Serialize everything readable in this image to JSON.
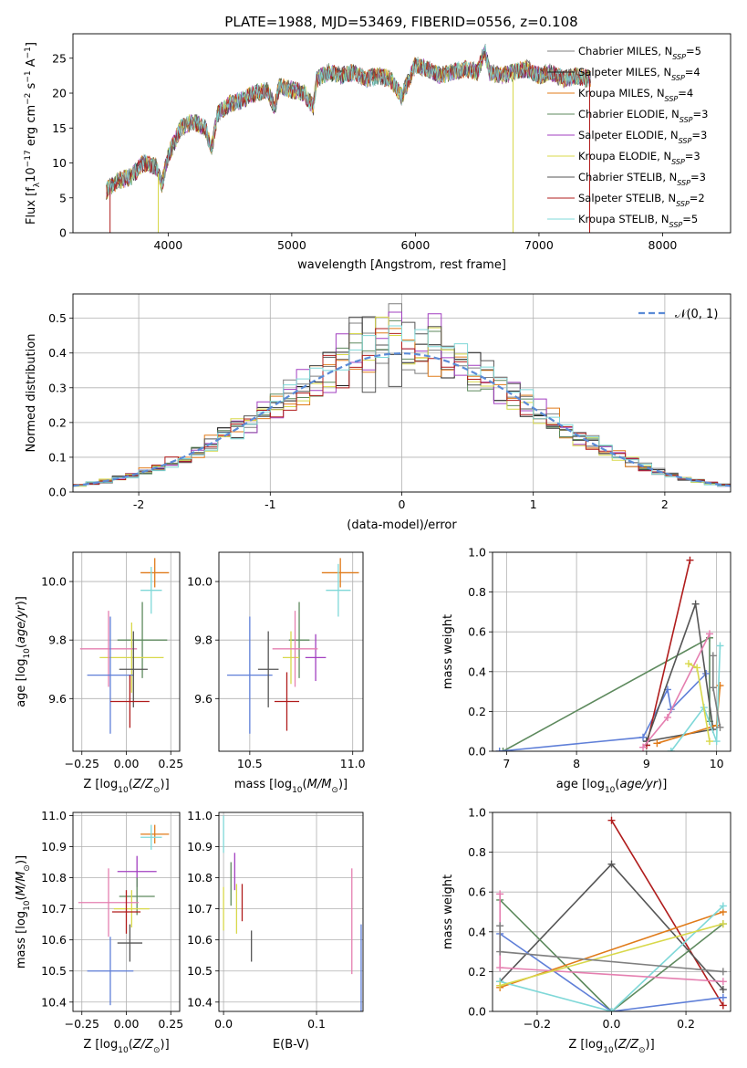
{
  "title": "PLATE=1988, MJD=53469, FIBERID=0556, z=0.108",
  "colors": {
    "Chabrier MILES": "#7f7f7f",
    "Salpeter MILES": "#1f1f1f",
    "Kroupa MILES": "#e07b1a",
    "Chabrier ELODIE": "#5e8a5e",
    "Salpeter ELODIE": "#a23fc0",
    "Kroupa ELODIE": "#d8d84a",
    "Chabrier STELIB": "#555555",
    "Salpeter STELIB": "#b01c1c",
    "Kroupa STELIB": "#7fd8d8",
    "blue": "#5f7fd8",
    "pink": "#e57fb0",
    "normal_curve": "#5b8bd6"
  },
  "chart_data": [
    {
      "type": "line",
      "id": "spectrum",
      "title": "PLATE=1988, MJD=53469, FIBERID=0556, z=0.108",
      "xlabel": "wavelength [Angstrom, rest frame]",
      "ylabel": "Flux [f_λ10^-17 erg cm^-2 s^-1 A^-1]",
      "xlim": [
        3230,
        8550
      ],
      "ylim": [
        0,
        28.5
      ],
      "xticks": [
        4000,
        5000,
        6000,
        7000,
        8000
      ],
      "yticks": [
        0,
        5,
        10,
        15,
        20,
        25
      ],
      "legend_location": "upper right",
      "legend": [
        {
          "label": "Chabrier MILES, N_SSP=5",
          "color": "#7f7f7f"
        },
        {
          "label": "Salpeter MILES, N_SSP=4",
          "color": "#1f1f1f"
        },
        {
          "label": "Kroupa MILES, N_SSP=4",
          "color": "#e07b1a"
        },
        {
          "label": "Chabrier ELODIE, N_SSP=3",
          "color": "#5e8a5e"
        },
        {
          "label": "Salpeter ELODIE, N_SSP=3",
          "color": "#a23fc0"
        },
        {
          "label": "Kroupa ELODIE, N_SSP=3",
          "color": "#d8d84a"
        },
        {
          "label": "Chabrier STELIB, N_SSP=3",
          "color": "#555555"
        },
        {
          "label": "Salpeter STELIB, N_SSP=2",
          "color": "#b01c1c"
        },
        {
          "label": "Kroupa STELIB, N_SSP=5",
          "color": "#7fd8d8"
        }
      ],
      "spectrum_envelope": [
        [
          3500,
          6
        ],
        [
          3600,
          7.5
        ],
        [
          3700,
          8
        ],
        [
          3800,
          10
        ],
        [
          3900,
          9.5
        ],
        [
          3950,
          7
        ],
        [
          4000,
          11
        ],
        [
          4100,
          15
        ],
        [
          4200,
          16
        ],
        [
          4300,
          15
        ],
        [
          4350,
          12
        ],
        [
          4400,
          17
        ],
        [
          4500,
          18.5
        ],
        [
          4600,
          19
        ],
        [
          4700,
          20
        ],
        [
          4800,
          20.5
        ],
        [
          4861,
          18
        ],
        [
          4900,
          21
        ],
        [
          5000,
          20.5
        ],
        [
          5100,
          20
        ],
        [
          5175,
          18
        ],
        [
          5200,
          22
        ],
        [
          5300,
          23
        ],
        [
          5400,
          22.5
        ],
        [
          5500,
          23
        ],
        [
          5600,
          22
        ],
        [
          5700,
          22.5
        ],
        [
          5800,
          22
        ],
        [
          5890,
          19.5
        ],
        [
          5950,
          22
        ],
        [
          6000,
          24
        ],
        [
          6100,
          23.5
        ],
        [
          6200,
          22.5
        ],
        [
          6300,
          23
        ],
        [
          6400,
          23.5
        ],
        [
          6500,
          23
        ],
        [
          6563,
          26
        ],
        [
          6600,
          23
        ],
        [
          6700,
          22.5
        ],
        [
          6800,
          23
        ],
        [
          6900,
          23.5
        ],
        [
          7000,
          22.5
        ],
        [
          7100,
          23
        ],
        [
          7200,
          22
        ],
        [
          7300,
          22.5
        ],
        [
          7400,
          22
        ]
      ],
      "dropouts": [
        {
          "model": "Salpeter STELIB",
          "at": [
            3530,
            7410
          ]
        },
        {
          "model": "Kroupa ELODIE",
          "at": [
            3920,
            6790
          ]
        }
      ]
    },
    {
      "type": "histogram",
      "id": "residuals",
      "xlabel": "(data-model)/error",
      "ylabel": "Normed distribution",
      "xlim": [
        -2.5,
        2.5
      ],
      "ylim": [
        0,
        0.57
      ],
      "xticks": [
        -2,
        -1,
        0,
        1,
        2
      ],
      "yticks": [
        0.0,
        0.1,
        0.2,
        0.3,
        0.4,
        0.5
      ],
      "bin_width": 0.1,
      "legend": [
        {
          "label": "𝒩(0, 1)",
          "style": "dashed",
          "color": "#5b8bd6"
        }
      ],
      "legend_location": "upper right",
      "curve": "normal",
      "curve_params": {
        "mean": 0,
        "sigma": 1
      }
    },
    {
      "type": "errorbar",
      "id": "age_vs_Z",
      "xlabel": "Z [log10(Z/Z⊙)]",
      "ylabel": "age  [log10(age/yr)]",
      "xlim": [
        -0.3,
        0.3
      ],
      "ylim": [
        9.42,
        10.1
      ],
      "xticks": [
        -0.25,
        0.0,
        0.25
      ],
      "xtick_labels": [
        "−0.25",
        "0.00",
        "0.25"
      ],
      "yticks": [
        9.6,
        9.8,
        10.0
      ],
      "points": [
        {
          "x": 0.16,
          "xerr": 0.08,
          "y": 10.03,
          "yerr": 0.05,
          "color": "#e07b1a"
        },
        {
          "x": 0.14,
          "xerr": 0.06,
          "y": 9.97,
          "yerr": 0.08,
          "color": "#7fd8d8"
        },
        {
          "x": 0.09,
          "xerr": 0.14,
          "y": 9.8,
          "yerr": 0.13,
          "color": "#5e8a5e"
        },
        {
          "x": 0.03,
          "xerr": 0.18,
          "y": 9.74,
          "yerr": 0.12,
          "color": "#d8d84a"
        },
        {
          "x": -0.1,
          "xerr": 0.16,
          "y": 9.77,
          "yerr": 0.13,
          "color": "#e57fb0"
        },
        {
          "x": -0.09,
          "xerr": 0.13,
          "y": 9.68,
          "yerr": 0.2,
          "color": "#5f7fd8"
        },
        {
          "x": 0.04,
          "xerr": 0.08,
          "y": 9.7,
          "yerr": 0.13,
          "color": "#555555"
        },
        {
          "x": 0.02,
          "xerr": 0.11,
          "y": 9.59,
          "yerr": 0.09,
          "color": "#b01c1c"
        }
      ]
    },
    {
      "type": "errorbar",
      "id": "age_vs_mass",
      "xlabel": "mass [log10(M/M⊙)]",
      "ylabel": "",
      "xlim": [
        10.35,
        11.05
      ],
      "ylim": [
        9.42,
        10.1
      ],
      "xticks": [
        10.5,
        11.0
      ],
      "xtick_labels": [
        "10.5",
        "11.0"
      ],
      "yticks": [
        9.6,
        9.8,
        10.0
      ],
      "points": [
        {
          "x": 10.94,
          "xerr": 0.09,
          "y": 10.03,
          "yerr": 0.05,
          "color": "#e07b1a"
        },
        {
          "x": 10.93,
          "xerr": 0.06,
          "y": 9.97,
          "yerr": 0.09,
          "color": "#7fd8d8"
        },
        {
          "x": 10.74,
          "xerr": 0.05,
          "y": 9.8,
          "yerr": 0.13,
          "color": "#5e8a5e"
        },
        {
          "x": 10.7,
          "xerr": 0.04,
          "y": 9.74,
          "yerr": 0.09,
          "color": "#d8d84a"
        },
        {
          "x": 10.82,
          "xerr": 0.05,
          "y": 9.74,
          "yerr": 0.08,
          "color": "#a23fc0"
        },
        {
          "x": 10.72,
          "xerr": 0.11,
          "y": 9.77,
          "yerr": 0.13,
          "color": "#e57fb0"
        },
        {
          "x": 10.5,
          "xerr": 0.11,
          "y": 9.68,
          "yerr": 0.2,
          "color": "#5f7fd8"
        },
        {
          "x": 10.59,
          "xerr": 0.05,
          "y": 9.7,
          "yerr": 0.13,
          "color": "#555555"
        },
        {
          "x": 10.68,
          "xerr": 0.06,
          "y": 9.59,
          "yerr": 0.1,
          "color": "#b01c1c"
        }
      ]
    },
    {
      "type": "line",
      "id": "weight_vs_age",
      "xlabel": "age  [log10(age/yr)]",
      "ylabel": "mass weight",
      "xlim": [
        6.8,
        10.2
      ],
      "ylim": [
        0,
        1.0
      ],
      "xticks": [
        7,
        8,
        9,
        10
      ],
      "yticks": [
        0.0,
        0.2,
        0.4,
        0.6,
        0.8,
        1.0
      ],
      "series": [
        {
          "color": "#5e8a5e",
          "x": [
            6.95,
            9.9,
            9.9
          ],
          "y": [
            0.0,
            0.57,
            0.15
          ]
        },
        {
          "color": "#5f7fd8",
          "x": [
            6.9,
            8.95,
            9.3,
            9.35,
            9.85
          ],
          "y": [
            0.0,
            0.07,
            0.31,
            0.21,
            0.39
          ]
        },
        {
          "color": "#b01c1c",
          "x": [
            9.0,
            9.62,
            9.0
          ],
          "y": [
            0.03,
            0.96,
            0.03
          ]
        },
        {
          "color": "#555555",
          "x": [
            9.0,
            9.7,
            9.95,
            9.0
          ],
          "y": [
            0.05,
            0.74,
            0.11,
            0.05
          ]
        },
        {
          "color": "#e07b1a",
          "x": [
            9.15,
            10.0,
            10.05
          ],
          "y": [
            0.04,
            0.13,
            0.33
          ]
        },
        {
          "color": "#7fd8d8",
          "x": [
            9.35,
            9.82,
            10.0,
            10.05
          ],
          "y": [
            0.0,
            0.22,
            0.05,
            0.53
          ]
        },
        {
          "color": "#e57fb0",
          "x": [
            8.95,
            9.3,
            9.9
          ],
          "y": [
            0.02,
            0.17,
            0.59
          ]
        },
        {
          "color": "#d8d84a",
          "x": [
            9.6,
            9.72,
            9.9
          ],
          "y": [
            0.44,
            0.42,
            0.05
          ]
        },
        {
          "color": "#7f7f7f",
          "x": [
            9.95,
            9.95,
            10.05
          ],
          "y": [
            0.48,
            0.32,
            0.12
          ]
        }
      ]
    },
    {
      "type": "errorbar",
      "id": "mass_vs_Z",
      "xlabel": "Z [log10(Z/Z⊙)]",
      "ylabel": "mass [log10(M/M⊙)]",
      "xlim": [
        -0.3,
        0.3
      ],
      "ylim": [
        10.37,
        11.01
      ],
      "xticks": [
        -0.25,
        0.0,
        0.25
      ],
      "xtick_labels": [
        "−0.25",
        "0.00",
        "0.25"
      ],
      "yticks": [
        10.4,
        10.5,
        10.6,
        10.7,
        10.8,
        10.9,
        11.0
      ],
      "points": [
        {
          "x": 0.16,
          "xerr": 0.08,
          "y": 10.94,
          "yerr": 0.03,
          "color": "#e07b1a"
        },
        {
          "x": 0.14,
          "xerr": 0.06,
          "y": 10.93,
          "yerr": 0.04,
          "color": "#7fd8d8"
        },
        {
          "x": 0.06,
          "xerr": 0.11,
          "y": 10.82,
          "yerr": 0.05,
          "color": "#a23fc0"
        },
        {
          "x": 0.06,
          "xerr": 0.1,
          "y": 10.74,
          "yerr": 0.06,
          "color": "#5e8a5e"
        },
        {
          "x": 0.03,
          "xerr": 0.1,
          "y": 10.7,
          "yerr": 0.06,
          "color": "#d8d84a"
        },
        {
          "x": -0.1,
          "xerr": 0.17,
          "y": 10.72,
          "yerr": 0.11,
          "color": "#e57fb0"
        },
        {
          "x": 0.0,
          "xerr": 0.08,
          "y": 10.69,
          "yerr": 0.07,
          "color": "#b01c1c"
        },
        {
          "x": 0.02,
          "xerr": 0.07,
          "y": 10.59,
          "yerr": 0.06,
          "color": "#555555"
        },
        {
          "x": -0.09,
          "xerr": 0.13,
          "y": 10.5,
          "yerr": 0.11,
          "color": "#5f7fd8"
        }
      ]
    },
    {
      "type": "errorbar",
      "id": "mass_vs_ebv",
      "xlabel": "E(B-V)",
      "ylabel": "",
      "xlim": [
        -0.005,
        0.15
      ],
      "ylim": [
        10.37,
        11.01
      ],
      "xticks": [
        0.0,
        0.1
      ],
      "xtick_labels": [
        "0.0",
        "0.1"
      ],
      "yticks": [
        10.4,
        10.5,
        10.6,
        10.7,
        10.8,
        10.9,
        11.0
      ],
      "points": [
        {
          "x": 0.0,
          "y": 10.94,
          "yerr": 0.06,
          "color": "#7fd8d8"
        },
        {
          "x": 0.012,
          "y": 10.82,
          "yerr": 0.06,
          "color": "#a23fc0"
        },
        {
          "x": 0.008,
          "y": 10.78,
          "yerr": 0.07,
          "color": "#5e8a5e"
        },
        {
          "x": 0.0,
          "y": 10.7,
          "yerr": 0.07,
          "color": "#d8d84a"
        },
        {
          "x": 0.014,
          "y": 10.7,
          "yerr": 0.08,
          "color": "#d8d84a"
        },
        {
          "x": 0.02,
          "y": 10.72,
          "yerr": 0.06,
          "color": "#b01c1c"
        },
        {
          "x": 0.03,
          "y": 10.58,
          "yerr": 0.05,
          "color": "#555555"
        },
        {
          "x": 0.138,
          "y": 10.66,
          "yerr": 0.17,
          "color": "#e57fb0"
        },
        {
          "x": 0.148,
          "y": 10.5,
          "yerr": 0.15,
          "color": "#5f7fd8"
        }
      ]
    },
    {
      "type": "line",
      "id": "weight_vs_Z",
      "xlabel": "Z [log10(Z/Z⊙)]",
      "ylabel": "mass weight",
      "xlim": [
        -0.32,
        0.32
      ],
      "ylim": [
        0,
        1.0
      ],
      "xticks": [
        -0.2,
        0.0,
        0.2
      ],
      "xtick_labels": [
        "−0.2",
        "0.0",
        "0.2"
      ],
      "yticks": [
        0.0,
        0.2,
        0.4,
        0.6,
        0.8,
        1.0
      ],
      "series": [
        {
          "color": "#b01c1c",
          "x": [
            0.0,
            0.3
          ],
          "y": [
            0.96,
            0.03
          ]
        },
        {
          "color": "#555555",
          "x": [
            -0.3,
            0.0,
            0.3
          ],
          "y": [
            0.15,
            0.74,
            0.11
          ]
        },
        {
          "color": "#5e8a5e",
          "x": [
            -0.3,
            0.0,
            0.3
          ],
          "y": [
            0.56,
            0.0,
            0.44
          ]
        },
        {
          "color": "#5f7fd8",
          "x": [
            -0.3,
            0.0,
            0.3
          ],
          "y": [
            0.39,
            0.0,
            0.07
          ]
        },
        {
          "color": "#e07b1a",
          "x": [
            -0.3,
            0.3
          ],
          "y": [
            0.12,
            0.5
          ]
        },
        {
          "color": "#7fd8d8",
          "x": [
            -0.3,
            0.0,
            0.3
          ],
          "y": [
            0.15,
            0.0,
            0.53
          ]
        },
        {
          "color": "#e57fb0",
          "x": [
            -0.3,
            -0.3,
            0.3
          ],
          "y": [
            0.59,
            0.22,
            0.15
          ]
        },
        {
          "color": "#d8d84a",
          "x": [
            -0.3,
            0.3
          ],
          "y": [
            0.13,
            0.44
          ]
        },
        {
          "color": "#7f7f7f",
          "x": [
            -0.3,
            -0.3,
            0.3
          ],
          "y": [
            0.43,
            0.3,
            0.2
          ]
        }
      ]
    }
  ]
}
